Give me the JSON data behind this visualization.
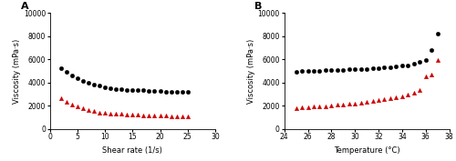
{
  "panel_A": {
    "title": "A",
    "xlabel": "Shear rate (1/s)",
    "ylabel": "Viscosity (mPa·s)",
    "xlim": [
      0,
      30
    ],
    "ylim": [
      0,
      10000
    ],
    "yticks": [
      0,
      2000,
      4000,
      6000,
      8000,
      10000
    ],
    "xticks": [
      0,
      5,
      10,
      15,
      20,
      25,
      30
    ],
    "black_x": [
      2,
      3,
      4,
      5,
      6,
      7,
      8,
      9,
      10,
      11,
      12,
      13,
      14,
      15,
      16,
      17,
      18,
      19,
      20,
      21,
      22,
      23,
      24,
      25
    ],
    "black_y": [
      5200,
      4900,
      4600,
      4400,
      4150,
      3950,
      3800,
      3700,
      3600,
      3500,
      3450,
      3420,
      3380,
      3350,
      3330,
      3310,
      3290,
      3260,
      3240,
      3220,
      3200,
      3180,
      3160,
      3150
    ],
    "red_x": [
      2,
      3,
      4,
      5,
      6,
      7,
      8,
      9,
      10,
      11,
      12,
      13,
      14,
      15,
      16,
      17,
      18,
      19,
      20,
      21,
      22,
      23,
      24,
      25
    ],
    "red_y": [
      2600,
      2350,
      2100,
      1900,
      1750,
      1600,
      1500,
      1420,
      1380,
      1340,
      1300,
      1270,
      1250,
      1230,
      1200,
      1180,
      1160,
      1150,
      1130,
      1120,
      1100,
      1090,
      1080,
      1050
    ]
  },
  "panel_B": {
    "title": "B",
    "xlabel": "Temperature (°C)",
    "ylabel": "Viscosity (mPa·s)",
    "xlim": [
      24,
      38
    ],
    "ylim": [
      0,
      10000
    ],
    "yticks": [
      0,
      2000,
      4000,
      6000,
      8000,
      10000
    ],
    "xticks": [
      24,
      26,
      28,
      30,
      32,
      34,
      36,
      38
    ],
    "black_x": [
      25,
      25.5,
      26,
      26.5,
      27,
      27.5,
      28,
      28.5,
      29,
      29.5,
      30,
      30.5,
      31,
      31.5,
      32,
      32.5,
      33,
      33.5,
      34,
      34.5,
      35,
      35.5,
      36,
      36.5,
      37
    ],
    "black_y": [
      4950,
      4980,
      5000,
      5020,
      5010,
      5050,
      5070,
      5080,
      5100,
      5120,
      5140,
      5160,
      5180,
      5210,
      5240,
      5280,
      5320,
      5380,
      5440,
      5500,
      5600,
      5750,
      5900,
      6800,
      8200
    ],
    "red_x": [
      25,
      25.5,
      26,
      26.5,
      27,
      27.5,
      28,
      28.5,
      29,
      29.5,
      30,
      30.5,
      31,
      31.5,
      32,
      32.5,
      33,
      33.5,
      34,
      34.5,
      35,
      35.5,
      36,
      36.5,
      37
    ],
    "red_y": [
      1800,
      1820,
      1850,
      1900,
      1920,
      1960,
      2000,
      2050,
      2100,
      2150,
      2200,
      2250,
      2300,
      2380,
      2450,
      2520,
      2600,
      2700,
      2800,
      2950,
      3100,
      3350,
      4500,
      4700,
      5950
    ]
  },
  "black_color": "#000000",
  "red_color": "#cc0000",
  "marker_black": "o",
  "marker_red": "^",
  "markersize": 3.2,
  "fontsize_label": 6,
  "fontsize_tick": 5.5,
  "fontsize_title": 8
}
